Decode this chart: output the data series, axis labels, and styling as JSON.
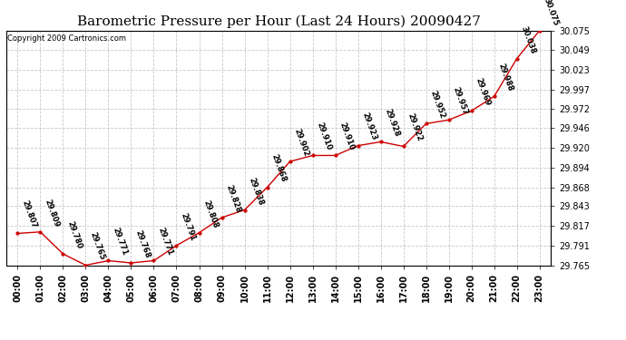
{
  "title": "Barometric Pressure per Hour (Last 24 Hours) 20090427",
  "copyright": "Copyright 2009 Cartronics.com",
  "hours": [
    "00:00",
    "01:00",
    "02:00",
    "03:00",
    "04:00",
    "05:00",
    "06:00",
    "07:00",
    "08:00",
    "09:00",
    "10:00",
    "11:00",
    "12:00",
    "13:00",
    "14:00",
    "15:00",
    "16:00",
    "17:00",
    "18:00",
    "19:00",
    "20:00",
    "21:00",
    "22:00",
    "23:00"
  ],
  "values": [
    29.807,
    29.809,
    29.78,
    29.765,
    29.771,
    29.768,
    29.771,
    29.791,
    29.808,
    29.828,
    29.838,
    29.868,
    29.902,
    29.91,
    29.91,
    29.923,
    29.928,
    29.922,
    29.952,
    29.957,
    29.969,
    29.988,
    30.038,
    30.075
  ],
  "ylim": [
    29.765,
    30.075
  ],
  "yticks": [
    29.765,
    29.791,
    29.817,
    29.843,
    29.868,
    29.894,
    29.92,
    29.946,
    29.972,
    29.997,
    30.023,
    30.049,
    30.075
  ],
  "line_color": "#cc0000",
  "marker_color": "#cc0000",
  "bg_color": "#ffffff",
  "grid_color": "#c8c8c8",
  "title_fontsize": 11,
  "label_fontsize": 7,
  "annot_fontsize": 6
}
